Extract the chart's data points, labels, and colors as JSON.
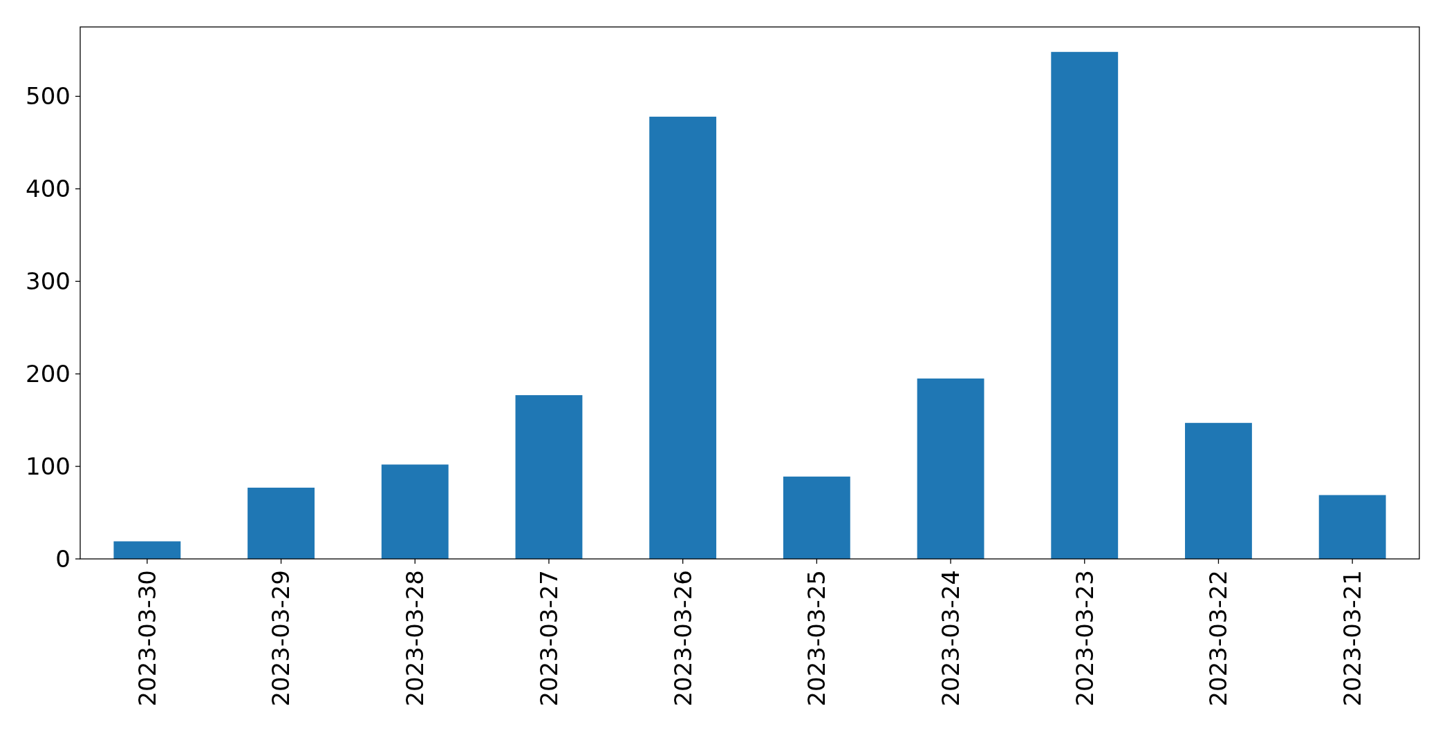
{
  "chart_data": {
    "type": "bar",
    "categories": [
      "2023-03-30",
      "2023-03-29",
      "2023-03-28",
      "2023-03-27",
      "2023-03-26",
      "2023-03-25",
      "2023-03-24",
      "2023-03-23",
      "2023-03-22",
      "2023-03-21"
    ],
    "values": [
      19,
      77,
      102,
      177,
      478,
      89,
      195,
      548,
      147,
      69
    ],
    "color": "#1f77b4",
    "ylim": [
      0,
      575
    ],
    "yticks": [
      0,
      100,
      200,
      300,
      400,
      500
    ]
  }
}
